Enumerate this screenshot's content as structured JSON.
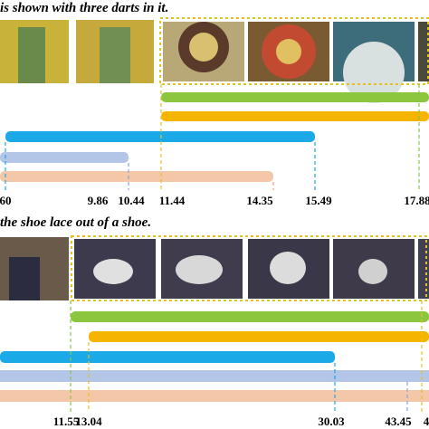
{
  "panels": [
    {
      "caption": "is shown with three darts in it.",
      "ticks": [
        "60",
        "9.86",
        "10.44",
        "11.44",
        "14.35",
        "15.49",
        "17.88"
      ]
    },
    {
      "caption": "the shoe lace out of a shoe.",
      "ticks": [
        "11.55",
        "13.04",
        "30.03",
        "43.45",
        "4"
      ]
    }
  ]
}
